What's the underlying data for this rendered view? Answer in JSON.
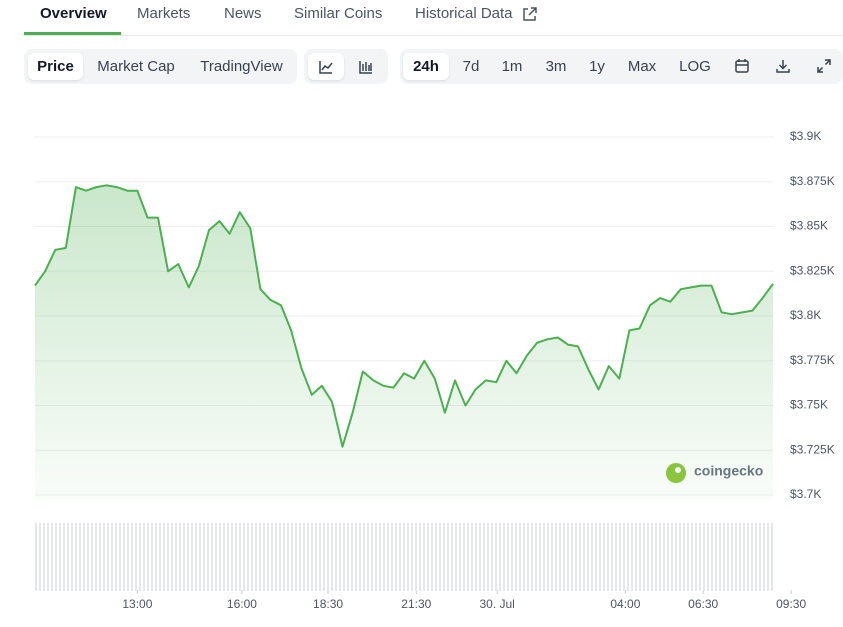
{
  "tabs": [
    "Overview",
    "Markets",
    "News",
    "Similar Coins",
    "Historical Data"
  ],
  "toolbar": {
    "views": [
      "Price",
      "Market Cap",
      "TradingView"
    ],
    "ranges": [
      "24h",
      "7d",
      "1m",
      "3m",
      "1y",
      "Max",
      "LOG"
    ]
  },
  "watermark": "coingecko",
  "chart_data": {
    "type": "line",
    "color": "#4caf50",
    "grid": true,
    "x": [
      9.67,
      10,
      10.33,
      10.67,
      11,
      11.33,
      11.67,
      12,
      12.33,
      12.67,
      13,
      13.33,
      13.67,
      14,
      14.33,
      14.67,
      15,
      15.33,
      15.67,
      16,
      16.33,
      16.67,
      17,
      17.33,
      17.67,
      18,
      18.33,
      18.67,
      19,
      19.33,
      19.67,
      20,
      20.33,
      20.67,
      21,
      21.33,
      21.67,
      22,
      22.33,
      22.67,
      23,
      23.33,
      23.67,
      24,
      24.33,
      24.67,
      25,
      25.33,
      25.67,
      26,
      26.33,
      26.67,
      27,
      27.33,
      27.67,
      28,
      28.33,
      28.67,
      29,
      29.33,
      29.67,
      30,
      30.33,
      30.67,
      31,
      31.33,
      31.67,
      32,
      32.33,
      32.67,
      33,
      33.33,
      33.67
    ],
    "values": [
      3817,
      3825,
      3837,
      3838,
      3872,
      3870,
      3872,
      3873,
      3872,
      3870,
      3870,
      3855,
      3855,
      3825,
      3829,
      3816,
      3828,
      3848,
      3853,
      3846,
      3858,
      3849,
      3815,
      3809,
      3806,
      3792,
      3771,
      3756,
      3761,
      3752,
      3727,
      3746,
      3769,
      3764,
      3761,
      3760,
      3768,
      3765,
      3775,
      3765,
      3746,
      3764,
      3750,
      3759,
      3764,
      3763,
      3775,
      3768,
      3778,
      3785,
      3787,
      3788,
      3784,
      3783,
      3770,
      3759,
      3772,
      3765,
      3792,
      3793,
      3806,
      3810,
      3808,
      3815,
      3816,
      3817,
      3817,
      3802,
      3801,
      3802,
      3803,
      3810,
      3818
    ],
    "xlim": [
      9.67,
      33.67
    ],
    "xticks": [
      {
        "value": 13,
        "label": "13:00"
      },
      {
        "value": 16.4,
        "label": "16:00"
      },
      {
        "value": 19.2,
        "label": "18:30"
      },
      {
        "value": 22.07,
        "label": "21:30"
      },
      {
        "value": 24.7,
        "label": "30. Jul"
      },
      {
        "value": 28.87,
        "label": "04:00"
      },
      {
        "value": 31.4,
        "label": "06:30"
      },
      {
        "value": 34.26,
        "label": "09:30"
      }
    ],
    "ylim": [
      3700,
      3900
    ],
    "yticks": [
      {
        "value": 3700,
        "label": "$3.7K"
      },
      {
        "value": 3725,
        "label": "$3.725K"
      },
      {
        "value": 3750,
        "label": "$3.75K"
      },
      {
        "value": 3775,
        "label": "$3.775K"
      },
      {
        "value": 3800,
        "label": "$3.8K"
      },
      {
        "value": 3825,
        "label": "$3.825K"
      },
      {
        "value": 3850,
        "label": "$3.85K"
      },
      {
        "value": 3875,
        "label": "$3.875K"
      },
      {
        "value": 3900,
        "label": "$3.9K"
      }
    ]
  }
}
